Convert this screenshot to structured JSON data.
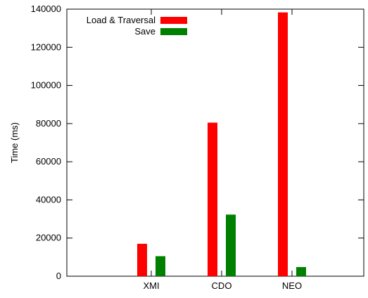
{
  "chart_data": {
    "type": "bar",
    "title": "",
    "xlabel": "",
    "ylabel": "Time (ms)",
    "categories": [
      "XMI",
      "CDO",
      "NEO"
    ],
    "series": [
      {
        "name": "Load & Traversal",
        "color": "#ff0000",
        "values": [
          17000,
          80500,
          138300
        ]
      },
      {
        "name": "Save",
        "color": "#008000",
        "values": [
          10500,
          32300,
          4800
        ]
      }
    ],
    "ylim": [
      0,
      140000
    ],
    "yticks": [
      0,
      20000,
      40000,
      60000,
      80000,
      100000,
      120000,
      140000
    ],
    "grid": false,
    "legend_position": "top-left"
  }
}
